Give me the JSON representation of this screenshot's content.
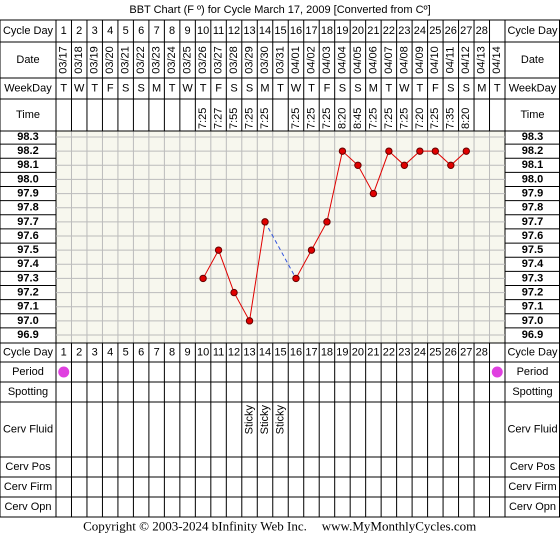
{
  "title": "BBT Chart (F º) for Cycle March 17, 2009  [Converted from Cº]",
  "row_labels": {
    "cycle_day": "Cycle Day",
    "date": "Date",
    "weekday": "WeekDay",
    "time": "Time",
    "period": "Period",
    "spotting": "Spotting",
    "cerv_fluid": "Cerv Fluid",
    "cerv_pos": "Cerv Pos",
    "cerv_firm": "Cerv Firm",
    "cerv_opn": "Cerv Opn"
  },
  "cycle_days": [
    1,
    2,
    3,
    4,
    5,
    6,
    7,
    8,
    9,
    10,
    11,
    12,
    13,
    14,
    15,
    16,
    17,
    18,
    19,
    20,
    21,
    22,
    23,
    24,
    25,
    26,
    27,
    28,
    null
  ],
  "dates": [
    "03/17",
    "03/18",
    "03/19",
    "03/20",
    "03/21",
    "03/22",
    "03/23",
    "03/24",
    "03/25",
    "03/26",
    "03/27",
    "03/28",
    "03/29",
    "03/30",
    "03/31",
    "04/01",
    "04/02",
    "04/03",
    "04/04",
    "04/05",
    "04/06",
    "04/07",
    "04/08",
    "04/09",
    "04/10",
    "04/11",
    "04/12",
    "04/13",
    "04/14"
  ],
  "weekdays": [
    "T",
    "W",
    "T",
    "F",
    "S",
    "S",
    "M",
    "T",
    "W",
    "T",
    "F",
    "S",
    "S",
    "M",
    "T",
    "W",
    "T",
    "F",
    "S",
    "S",
    "M",
    "T",
    "W",
    "T",
    "F",
    "S",
    "S",
    "M",
    "T"
  ],
  "times": [
    null,
    null,
    null,
    null,
    null,
    null,
    null,
    null,
    null,
    "7:25",
    "7:27",
    "7:55",
    "7:25",
    "7:25",
    null,
    "7:25",
    "7:25",
    "7:25",
    "8:20",
    "8:45",
    "7:25",
    "7:25",
    "7:25",
    "7:20",
    "7:25",
    "7:35",
    "8:20",
    null,
    null
  ],
  "chart_data": {
    "type": "line",
    "values": [
      null,
      null,
      null,
      null,
      null,
      null,
      null,
      null,
      null,
      97.3,
      97.5,
      97.2,
      97.0,
      97.7,
      null,
      97.3,
      97.5,
      97.7,
      98.2,
      98.1,
      97.9,
      98.2,
      98.1,
      98.2,
      98.2,
      98.1,
      98.2,
      null,
      null
    ],
    "color": "#e00000",
    "ylim": [
      96.9,
      98.3
    ],
    "yticks": [
      98.3,
      98.2,
      98.1,
      {
        "value": 98,
        "label": "98.0"
      },
      97.9,
      97.8,
      97.7,
      97.6,
      97.5,
      97.4,
      97.3,
      97.2,
      97.1,
      {
        "value": 97,
        "label": "97.0"
      },
      96.9
    ],
    "grid": true
  },
  "period_days": [
    1,
    29
  ],
  "cerv_fluid": [
    null,
    null,
    null,
    null,
    null,
    null,
    null,
    null,
    null,
    null,
    null,
    null,
    "Sticky",
    "Sticky",
    "Sticky",
    null,
    null,
    null,
    null,
    null,
    null,
    null,
    null,
    null,
    null,
    null,
    null,
    null,
    null
  ],
  "footer": {
    "copyright": "Copyright © 2003-2024 bInfinity Web Inc.",
    "site": "www.MyMonthlyCycles.com"
  }
}
